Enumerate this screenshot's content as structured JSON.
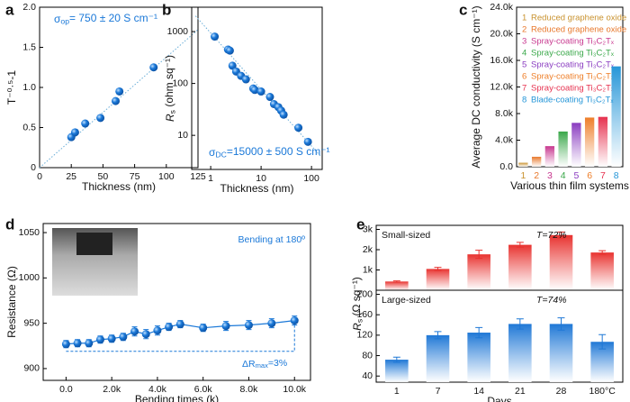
{
  "chart_data": [
    {
      "type": "scatter",
      "panel_label": "a",
      "annotation": {
        "main": "σ",
        "sub": "op",
        "rest": "= 750 ± 20 S cm⁻¹"
      },
      "x_label": "Thickness (nm)",
      "y_label": "T⁻⁰·⁵-1",
      "x": [
        25,
        28,
        36,
        48,
        60,
        63,
        90
      ],
      "values": [
        0.38,
        0.44,
        0.55,
        0.62,
        0.83,
        0.95,
        1.25
      ],
      "trendline": {
        "x": [
          0,
          125
        ],
        "y": [
          0,
          1.72
        ]
      },
      "color": "#1a78d8",
      "xlim": [
        0,
        125
      ],
      "xticks": [
        0,
        25,
        50,
        75,
        100,
        125
      ],
      "ylim": [
        0,
        2.0
      ],
      "yticks": [
        0,
        0.5,
        {
          "value": 1.0,
          "label": "1.0"
        },
        1.5,
        {
          "value": 2.0,
          "label": "2.0"
        }
      ]
    },
    {
      "type": "scatter",
      "panel_label": "b",
      "annotation": {
        "main": "σ",
        "sub": "DC",
        "rest": "=15000 ± 500 S cm⁻¹"
      },
      "x_label": "Thickness (nm)",
      "y_label": {
        "main": "R",
        "sub": "s",
        "rest": " (ohm sq⁻¹)"
      },
      "x": [
        1.2,
        2.2,
        2.4,
        2.7,
        3.2,
        4,
        5,
        7,
        7.5,
        10,
        15,
        18,
        22,
        25,
        28,
        55,
        85
      ],
      "values": [
        800,
        450,
        430,
        220,
        170,
        140,
        120,
        80,
        75,
        70,
        55,
        40,
        35,
        30,
        25,
        14,
        7.5
      ],
      "trendline": {
        "x": [
          0.5,
          150
        ],
        "y": [
          2000,
          4
        ]
      },
      "color": "#1a78d8",
      "xscale": "log",
      "yscale": "log",
      "xlim": [
        0.42,
        163
      ],
      "xticks": [
        1,
        10,
        100
      ],
      "ylim": [
        2.2,
        2950
      ],
      "yticks": [
        10,
        100,
        1000
      ]
    },
    {
      "type": "bar",
      "panel_label": "c",
      "x_label": "Various thin film systems",
      "y_label": "Average DC conductivity (S cm⁻¹)",
      "categories": [
        "1",
        "2",
        "3",
        "4",
        "5",
        "6",
        "7",
        "8"
      ],
      "values": [
        600,
        1500,
        3100,
        5300,
        6600,
        7400,
        7500,
        15100
      ],
      "colors": [
        "#c9922e",
        "#e8782c",
        "#c8388f",
        "#3aa84a",
        "#8a3cc0",
        "#ee7e28",
        "#e6304e",
        "#2596d8"
      ],
      "legend": [
        "Reduced graphene oxide",
        "Reduced graphene oxide",
        "Spray-coating Ti₃C₂Tₓ",
        "Spray-coating Ti₃C₂Tₓ",
        "Spray-coating Ti₃C₂Tₓ",
        "Spray-coating Ti₃C₂Tₓ",
        "Spray-coating Ti₃C₂Tₓ",
        "Blade-coating Ti₃C₂Tₓ"
      ],
      "ylim": [
        0,
        24000
      ],
      "yticks": [
        {
          "value": 0,
          "label": "0.0"
        },
        {
          "value": 4000,
          "label": "4.0k"
        },
        {
          "value": 8000,
          "label": "8.0k"
        },
        {
          "value": 12000,
          "label": "12.0k"
        },
        {
          "value": 16000,
          "label": "16.0k"
        },
        {
          "value": 20000,
          "label": "20.0k"
        },
        {
          "value": 24000,
          "label": "24.0k"
        }
      ]
    },
    {
      "type": "line",
      "panel_label": "d",
      "annotation": "Bending at 180º",
      "annotation2": {
        "main": "ΔR",
        "sub": "max",
        "rest": "=3%"
      },
      "x_label": "Bending times (k)",
      "y_label": "Resistance (Ω)",
      "x": [
        0,
        500,
        1000,
        1500,
        2000,
        2500,
        3000,
        3500,
        4000,
        4500,
        5000,
        6000,
        7000,
        8000,
        9000,
        10000
      ],
      "values": [
        927,
        928,
        928,
        932,
        933,
        935,
        941,
        938,
        942,
        946,
        949,
        945,
        947,
        948,
        950,
        953
      ],
      "errors": [
        4,
        4,
        4,
        4,
        4,
        4,
        5,
        5,
        5,
        4,
        4,
        4,
        5,
        5,
        5,
        5
      ],
      "color": "#1a78d8",
      "xlim": [
        -1000,
        10700
      ],
      "xticks": [
        {
          "value": 0,
          "label": "0.0"
        },
        {
          "value": 2000,
          "label": "2.0k"
        },
        {
          "value": 4000,
          "label": "4.0k"
        },
        {
          "value": 6000,
          "label": "6.0k"
        },
        {
          "value": 8000,
          "label": "8.0k"
        },
        {
          "value": 10000,
          "label": "10.0k"
        }
      ],
      "ylim": [
        887,
        1060
      ],
      "yticks": [
        900,
        950,
        1000,
        1050
      ]
    },
    {
      "type": "bar-panels",
      "panel_label": "e",
      "x_label": "Days",
      "y_label": {
        "main": "R",
        "sub": "s",
        "rest": " (Ω sq⁻¹)"
      },
      "categories": [
        "1",
        "7",
        "14",
        "21",
        "28",
        "180°C"
      ],
      "panels": [
        {
          "label": "Small-sized",
          "annotation": "T=72%",
          "color": "#e8322f",
          "values": [
            430,
            1050,
            1770,
            2240,
            2720,
            1860
          ],
          "errors": [
            30,
            80,
            200,
            120,
            150,
            90
          ],
          "ylim": [
            0,
            3200
          ],
          "yticks": [
            {
              "value": 1000,
              "label": "1k"
            },
            {
              "value": 2000,
              "label": "2k"
            },
            {
              "value": 3000,
              "label": "3k"
            }
          ]
        },
        {
          "label": "Large-sized",
          "annotation": "T=74%",
          "color": "#1f78d6",
          "values": [
            72,
            120,
            125,
            142,
            142,
            107
          ],
          "errors": [
            5,
            7,
            10,
            10,
            12,
            14
          ],
          "ylim": [
            28,
            208
          ],
          "yticks": [
            40,
            80,
            120,
            160,
            200
          ]
        }
      ]
    }
  ]
}
